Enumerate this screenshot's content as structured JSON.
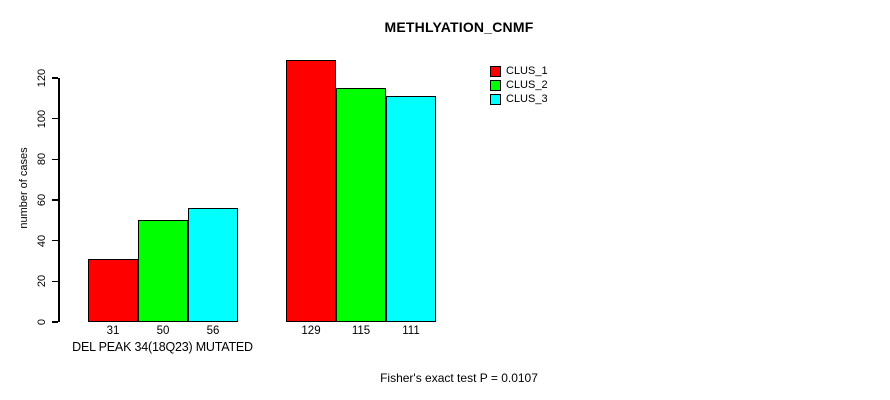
{
  "chart_data": {
    "type": "bar",
    "title": "METHLYATION_CNMF",
    "xlabel": "",
    "ylabel": "number of cases",
    "categories": [
      "DEL PEAK 34(18Q23) MUTATED",
      ""
    ],
    "series": [
      {
        "name": "CLUS_1",
        "color": "#ff0000",
        "values": [
          31,
          129
        ]
      },
      {
        "name": "CLUS_2",
        "color": "#00ff00",
        "values": [
          50,
          115
        ]
      },
      {
        "name": "CLUS_3",
        "color": "#00ffff",
        "values": [
          56,
          111
        ]
      }
    ],
    "bar_value_labels": [
      [
        "31",
        "50",
        "56"
      ],
      [
        "129",
        "115",
        "111"
      ]
    ],
    "ylim": [
      0,
      120
    ],
    "yticks": [
      "0",
      "20",
      "40",
      "60",
      "80",
      "100",
      "120"
    ],
    "grid": false,
    "legend_position": "topright",
    "group1_label": "DEL PEAK 34(18Q23) MUTATED",
    "footnote": "Fisher's exact test P = 0.0107",
    "colors": {
      "background": "#ffffff",
      "axis": "#000000",
      "text": "#000000"
    }
  }
}
